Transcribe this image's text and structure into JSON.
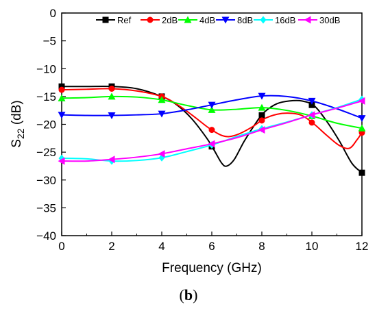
{
  "chart_data": {
    "type": "line",
    "xlabel": "Frequency (GHz)",
    "ylabel_main": "S",
    "ylabel_sub": "22",
    "ylabel_unit": " (dB)",
    "xlim": [
      0,
      12
    ],
    "ylim": [
      -40,
      0
    ],
    "xticks": [
      0,
      2,
      4,
      6,
      8,
      10,
      12
    ],
    "yticks": [
      0,
      -5,
      -10,
      -15,
      -20,
      -25,
      -30,
      -35,
      -40
    ],
    "grid": false,
    "legend_position": "top",
    "marker_x": [
      0,
      2,
      4,
      6,
      8,
      10,
      12
    ],
    "series": [
      {
        "name": "Ref",
        "color": "#000000",
        "marker": "square",
        "points": [
          [
            0,
            -13.2
          ],
          [
            1,
            -13.2
          ],
          [
            2,
            -13.2
          ],
          [
            3,
            -13.6
          ],
          [
            4,
            -15.0
          ],
          [
            4.6,
            -16.5
          ],
          [
            5.2,
            -19.0
          ],
          [
            5.8,
            -22.5
          ],
          [
            6.1,
            -24.7
          ],
          [
            6.4,
            -27.0
          ],
          [
            6.6,
            -27.5
          ],
          [
            6.9,
            -26.3
          ],
          [
            7.3,
            -23.0
          ],
          [
            7.8,
            -19.5
          ],
          [
            8.1,
            -17.8
          ],
          [
            8.6,
            -16.3
          ],
          [
            9.1,
            -15.8
          ],
          [
            9.6,
            -15.8
          ],
          [
            10.1,
            -16.7
          ],
          [
            10.6,
            -19.5
          ],
          [
            11.1,
            -23.0
          ],
          [
            11.6,
            -27.0
          ],
          [
            12,
            -28.7
          ]
        ]
      },
      {
        "name": "2dB",
        "color": "#ff0000",
        "marker": "circle",
        "points": [
          [
            0,
            -13.8
          ],
          [
            1,
            -13.7
          ],
          [
            2,
            -13.6
          ],
          [
            3,
            -14.0
          ],
          [
            4,
            -15.0
          ],
          [
            4.6,
            -16.4
          ],
          [
            5.2,
            -18.3
          ],
          [
            5.8,
            -20.4
          ],
          [
            6.1,
            -21.3
          ],
          [
            6.4,
            -22.0
          ],
          [
            6.7,
            -22.2
          ],
          [
            7.1,
            -21.7
          ],
          [
            7.6,
            -20.5
          ],
          [
            8.1,
            -19.0
          ],
          [
            8.6,
            -18.2
          ],
          [
            9.1,
            -18.0
          ],
          [
            9.6,
            -18.4
          ],
          [
            10.1,
            -20.0
          ],
          [
            10.6,
            -22.0
          ],
          [
            11.1,
            -23.8
          ],
          [
            11.5,
            -24.3
          ],
          [
            11.8,
            -22.8
          ],
          [
            12,
            -21.5
          ]
        ]
      },
      {
        "name": "4dB",
        "color": "#00ff00",
        "marker": "triangle-up",
        "points": [
          [
            0,
            -15.3
          ],
          [
            1,
            -15.2
          ],
          [
            2,
            -15.0
          ],
          [
            3,
            -15.1
          ],
          [
            4,
            -15.6
          ],
          [
            5,
            -16.6
          ],
          [
            6,
            -17.4
          ],
          [
            7,
            -17.3
          ],
          [
            8,
            -17.0
          ],
          [
            9,
            -17.5
          ],
          [
            10,
            -18.5
          ],
          [
            11,
            -19.8
          ],
          [
            12,
            -20.7
          ]
        ]
      },
      {
        "name": "8dB",
        "color": "#0000ff",
        "marker": "triangle-down",
        "points": [
          [
            0,
            -18.3
          ],
          [
            1,
            -18.4
          ],
          [
            2,
            -18.4
          ],
          [
            3,
            -18.3
          ],
          [
            4,
            -18.1
          ],
          [
            5,
            -17.4
          ],
          [
            6,
            -16.5
          ],
          [
            7,
            -15.6
          ],
          [
            8,
            -14.9
          ],
          [
            9,
            -15.0
          ],
          [
            10,
            -15.8
          ],
          [
            11,
            -17.2
          ],
          [
            12,
            -18.9
          ]
        ]
      },
      {
        "name": "16dB",
        "color": "#00ffff",
        "marker": "diamond",
        "points": [
          [
            0,
            -26.1
          ],
          [
            1,
            -26.2
          ],
          [
            2,
            -26.6
          ],
          [
            3,
            -26.5
          ],
          [
            4,
            -26.0
          ],
          [
            5,
            -24.9
          ],
          [
            6,
            -23.7
          ],
          [
            7,
            -22.2
          ],
          [
            8,
            -20.8
          ],
          [
            9,
            -19.6
          ],
          [
            10,
            -18.3
          ],
          [
            11,
            -17.0
          ],
          [
            12,
            -15.5
          ]
        ]
      },
      {
        "name": "30dB",
        "color": "#ff00ff",
        "marker": "triangle-left",
        "points": [
          [
            0,
            -26.6
          ],
          [
            1,
            -26.6
          ],
          [
            2,
            -26.3
          ],
          [
            3,
            -25.9
          ],
          [
            4,
            -25.3
          ],
          [
            5,
            -24.4
          ],
          [
            6,
            -23.5
          ],
          [
            7,
            -22.4
          ],
          [
            8,
            -21.0
          ],
          [
            9,
            -19.7
          ],
          [
            10,
            -18.3
          ],
          [
            11,
            -17.1
          ],
          [
            12,
            -15.8
          ]
        ]
      }
    ]
  },
  "caption": {
    "open": "(",
    "letter": "b",
    "close": ")"
  }
}
